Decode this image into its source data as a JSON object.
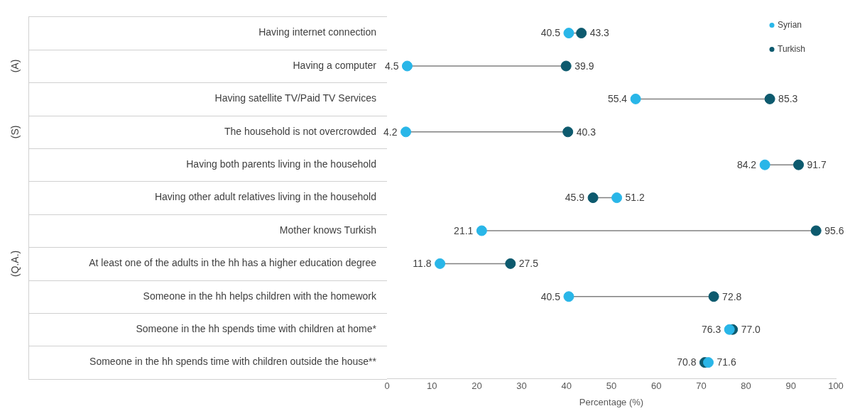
{
  "chart_data": {
    "type": "scatter",
    "orientation": "horizontal",
    "xlabel": "Percentage (%)",
    "categories": [
      "Having internet connection",
      "Having a computer",
      "Having satellite TV/Paid TV Services",
      "The household is not overcrowded",
      "Having both parents living in the household",
      "Having other adult relatives living in the household",
      "Mother knows Turkish",
      "At least one of the adults in the hh has a higher education degree",
      "Someone in the hh helps children with the homework",
      "Someone in the hh spends time with children at home*",
      "Someone in the hh spends time with children outside the house**"
    ],
    "series": [
      {
        "name": "Syrian",
        "color": "#29b6e8",
        "values": [
          40.5,
          4.5,
          55.4,
          4.2,
          84.2,
          51.2,
          21.1,
          11.8,
          40.5,
          76.3,
          71.6
        ],
        "value_labels": [
          "40.5",
          "4.5",
          "55.4",
          "4.2",
          "84.2",
          "51.2",
          "21.1",
          "11.8",
          "40.5",
          "76.3",
          "71.6"
        ]
      },
      {
        "name": "Turkish",
        "color": "#0d5a6e",
        "values": [
          43.3,
          39.9,
          85.3,
          40.3,
          91.7,
          45.9,
          95.6,
          27.5,
          72.8,
          77.0,
          70.8
        ],
        "value_labels": [
          "43.3",
          "39.9",
          "85.3",
          "40.3",
          "91.7",
          "45.9",
          "95.6",
          "27.5",
          "72.8",
          "77.0",
          "70.8"
        ]
      }
    ],
    "xlim": [
      0,
      100
    ],
    "xticks": [
      0,
      10,
      20,
      30,
      40,
      50,
      60,
      70,
      80,
      90,
      100
    ],
    "annotations": [
      "(A)",
      "(S)",
      "(Q.A.)"
    ],
    "legend": "top right",
    "marker": "circle"
  }
}
